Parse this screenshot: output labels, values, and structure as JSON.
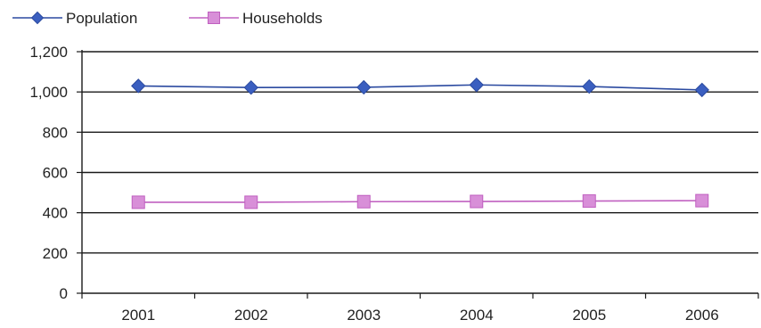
{
  "chart_data": {
    "type": "line",
    "title": "",
    "xlabel": "",
    "ylabel": "",
    "categories": [
      "2001",
      "2002",
      "2003",
      "2004",
      "2005",
      "2006"
    ],
    "ylim": [
      0,
      1200
    ],
    "yticks": [
      0,
      200,
      400,
      600,
      800,
      1000,
      1200
    ],
    "ytick_labels": [
      "0",
      "200",
      "400",
      "600",
      "800",
      "1,000",
      "1,200"
    ],
    "grid": true,
    "legend_position": "top-left",
    "series": [
      {
        "name": "Population",
        "values": [
          1030,
          1022,
          1023,
          1035,
          1027,
          1010
        ],
        "color": "#2b4aa0",
        "marker": "diamond",
        "marker_color": "#3b5fc0"
      },
      {
        "name": "Households",
        "values": [
          452,
          452,
          455,
          456,
          458,
          460
        ],
        "color": "#c060c0",
        "marker": "square",
        "marker_color": "#d88fd8"
      }
    ]
  }
}
